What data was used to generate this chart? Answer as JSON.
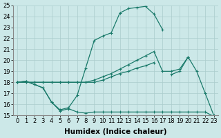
{
  "xlabel": "Humidex (Indice chaleur)",
  "x_values": [
    0,
    1,
    2,
    3,
    4,
    5,
    6,
    7,
    8,
    9,
    10,
    11,
    12,
    13,
    14,
    15,
    16,
    17,
    18,
    19,
    20,
    21,
    22,
    23
  ],
  "line_bell": [
    18.0,
    18.1,
    17.8,
    17.5,
    16.2,
    15.5,
    15.7,
    16.8,
    19.3,
    21.8,
    22.2,
    22.5,
    24.3,
    24.7,
    24.8,
    24.9,
    24.2,
    22.8,
    null,
    null,
    null,
    null,
    null,
    null
  ],
  "line_upper": [
    18.0,
    18.0,
    18.0,
    18.0,
    18.0,
    18.0,
    18.0,
    18.0,
    18.0,
    18.2,
    18.5,
    18.8,
    19.2,
    19.6,
    20.0,
    20.4,
    20.8,
    19.0,
    19.0,
    19.2,
    20.3,
    null,
    null,
    null
  ],
  "line_mid": [
    18.0,
    18.0,
    18.0,
    18.0,
    18.0,
    18.0,
    18.0,
    18.0,
    18.0,
    18.0,
    18.2,
    18.5,
    18.8,
    19.0,
    19.3,
    19.5,
    19.8,
    null,
    null,
    null,
    null,
    null,
    null,
    null
  ],
  "line_lower": [
    18.0,
    18.1,
    17.8,
    17.5,
    16.2,
    15.4,
    15.6,
    15.3,
    15.2,
    15.3,
    15.3,
    15.3,
    15.3,
    15.3,
    15.3,
    15.3,
    15.3,
    15.3,
    15.3,
    15.3,
    15.3,
    15.3,
    15.3,
    14.9
  ],
  "line_right": [
    null,
    null,
    null,
    null,
    null,
    null,
    null,
    null,
    null,
    null,
    null,
    null,
    null,
    null,
    null,
    null,
    null,
    null,
    18.7,
    19.0,
    20.3,
    19.0,
    17.0,
    15.0
  ],
  "line_color": "#1a7a6a",
  "bg_color": "#cce8e8",
  "grid_color": "#aacccc",
  "ylim": [
    15,
    25
  ],
  "yticks": [
    15,
    16,
    17,
    18,
    19,
    20,
    21,
    22,
    23,
    24,
    25
  ],
  "xticks": [
    0,
    1,
    2,
    3,
    4,
    5,
    6,
    7,
    8,
    9,
    10,
    11,
    12,
    13,
    14,
    15,
    16,
    17,
    18,
    19,
    20,
    21,
    22,
    23
  ],
  "tick_fontsize": 6.0,
  "label_fontsize": 7.5
}
